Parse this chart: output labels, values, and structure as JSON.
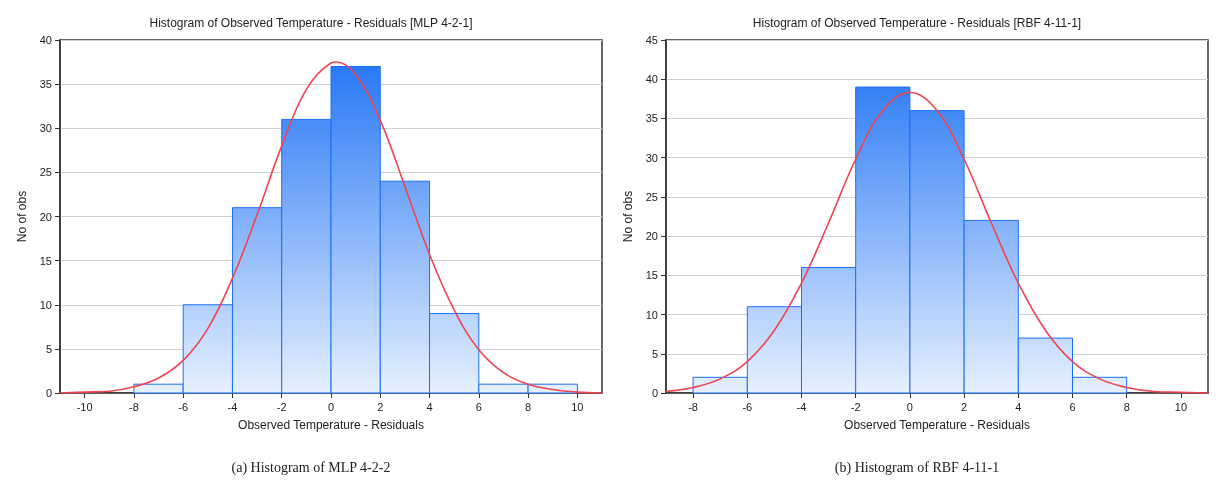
{
  "chart_data": [
    {
      "type": "histogram",
      "title": "Histogram of Observed Temperature - Residuals [MLP 4-2-1]",
      "xlabel": "Observed Temperature - Residuals",
      "ylabel": "No of obs",
      "annotations": [
        "(a) Histogram of MLP 4-2-2"
      ],
      "bins": [
        -8,
        -6,
        -4,
        -2,
        0,
        2,
        4,
        6,
        8,
        10
      ],
      "xlim": [
        -11,
        11
      ],
      "xticks": [
        -10,
        -8,
        -6,
        -4,
        -2,
        0,
        2,
        4,
        6,
        8,
        10
      ],
      "ylim": [
        0,
        40
      ],
      "yticks": [
        0,
        5,
        10,
        15,
        20,
        25,
        30,
        35,
        40
      ],
      "grid": "y",
      "series": [
        {
          "color": "#1a6ff5",
          "values": [
            1,
            10,
            21,
            31,
            37,
            24,
            9,
            1,
            1
          ]
        },
        {
          "type": "line",
          "color": "#f0444f",
          "marker": "none",
          "line_style": "solid",
          "x": [
            -11,
            -10,
            -9,
            -8,
            -7,
            -6,
            -5,
            -4,
            -3,
            -2,
            -1,
            0,
            0.2,
            1,
            2,
            3,
            4,
            5,
            6,
            7,
            8,
            9,
            10,
            11
          ],
          "values": [
            0,
            0.1,
            0.2,
            0.7,
            1.7,
            3.7,
            7.3,
            13,
            20.2,
            28,
            34.4,
            37.4,
            37.5,
            36.1,
            30.9,
            23.4,
            15.7,
            9.4,
            4.9,
            2.3,
            1,
            0.4,
            0.1,
            0
          ]
        }
      ]
    },
    {
      "type": "histogram",
      "title": "Histogram of Observed Temperature - Residuals [RBF 4-11-1]",
      "xlabel": "Observed Temperature - Residuals",
      "ylabel": "No of obs",
      "annotations": [
        "(b) Histogram of RBF 4-11-1"
      ],
      "bins": [
        -8,
        -6,
        -4,
        -2,
        0,
        2,
        4,
        6,
        8
      ],
      "xlim": [
        -9,
        11
      ],
      "xticks": [
        -8,
        -6,
        -4,
        -2,
        0,
        2,
        4,
        6,
        8,
        10
      ],
      "ylim": [
        0,
        45
      ],
      "yticks": [
        0,
        5,
        10,
        15,
        20,
        25,
        30,
        35,
        40,
        45
      ],
      "grid": "y",
      "series": [
        {
          "color": "#1a6ff5",
          "values": [
            2,
            11,
            16,
            39,
            36,
            22,
            7,
            2
          ]
        },
        {
          "type": "line",
          "color": "#f0444f",
          "marker": "none",
          "line_style": "solid",
          "x": [
            -9,
            -8,
            -7,
            -6,
            -5,
            -4,
            -3,
            -2,
            -1,
            0,
            1,
            2,
            3,
            4,
            5,
            6,
            7,
            8,
            9,
            10,
            11
          ],
          "values": [
            0.2,
            0.7,
            1.8,
            4,
            8,
            14,
            21.7,
            29.8,
            36,
            38.3,
            36,
            29.8,
            21.7,
            14,
            8,
            4,
            1.8,
            0.7,
            0.2,
            0.1,
            0
          ]
        }
      ]
    }
  ]
}
